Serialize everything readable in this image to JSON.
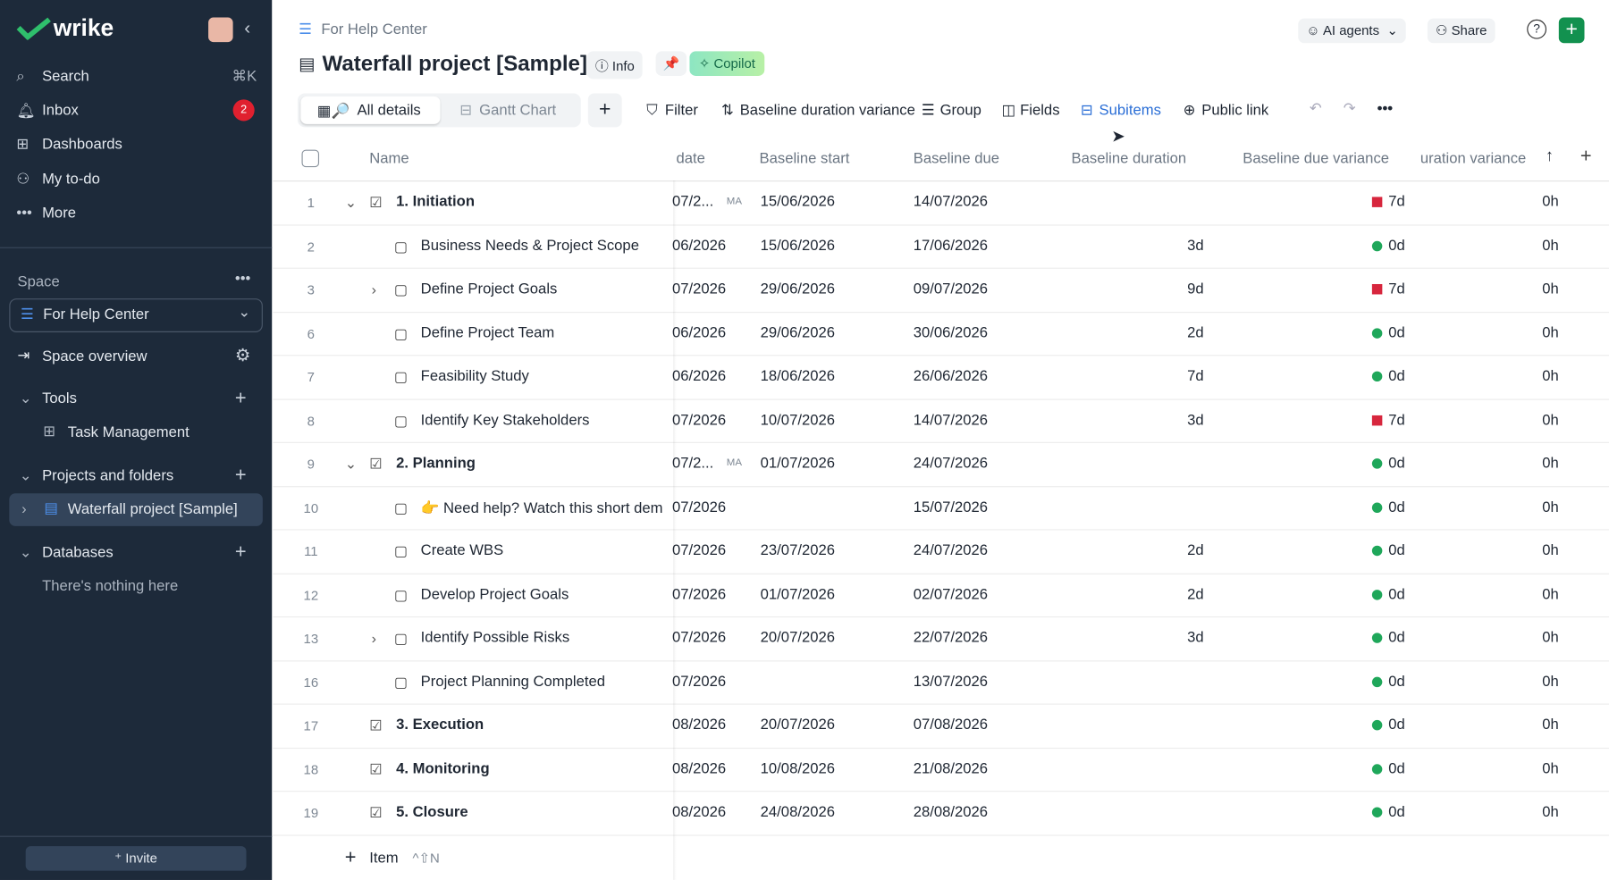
{
  "sidebar": {
    "logo": "wrike",
    "nav": [
      {
        "label": "Search",
        "shortcut": "⌘K"
      },
      {
        "label": "Inbox",
        "badge": "2"
      },
      {
        "label": "Dashboards"
      },
      {
        "label": "My to-do"
      },
      {
        "label": "More"
      }
    ],
    "space_label": "Space",
    "space": "For Help Center",
    "space_overview": "Space overview",
    "tools": "Tools",
    "tool_item": "Task Management",
    "projects": "Projects and folders",
    "project_item": "Waterfall project [Sample]",
    "databases": "Databases",
    "databases_empty": "There's nothing here",
    "invite": "Invite"
  },
  "header": {
    "breadcrumb": "For Help Center",
    "title": "Waterfall project [Sample]",
    "info": "Info",
    "copilot": "Copilot",
    "ai_agents": "AI agents",
    "share": "Share"
  },
  "toolbar": {
    "tabs": [
      "All details",
      "Gantt Chart"
    ],
    "actions": [
      "Filter",
      "Baseline duration variance",
      "Group",
      "Fields",
      "Subitems",
      "Public link"
    ]
  },
  "table": {
    "columns": [
      "Name",
      "date",
      "Baseline start",
      "Baseline due",
      "Baseline duration",
      "Baseline due variance",
      "uration variance"
    ],
    "status_colors": {
      "late": "#d7263d",
      "ok": "#1fa75a"
    },
    "rows": [
      {
        "num": "1",
        "name": "1. Initiation",
        "group": true,
        "expander": "open",
        "date": "07/2...",
        "tag": "MA",
        "start": "15/06/2026",
        "due": "14/07/2026",
        "status": "late",
        "variance": "7d",
        "dvar": "0h"
      },
      {
        "num": "2",
        "name": "Business Needs & Project Scope",
        "date": "06/2026",
        "start": "15/06/2026",
        "due": "17/06/2026",
        "duration": "3d",
        "status": "ok",
        "variance": "0d",
        "dvar": "0h"
      },
      {
        "num": "3",
        "name": "Define Project Goals",
        "expander": "closed",
        "date": "07/2026",
        "start": "29/06/2026",
        "due": "09/07/2026",
        "duration": "9d",
        "status": "late",
        "variance": "7d",
        "dvar": "0h"
      },
      {
        "num": "6",
        "name": "Define Project Team",
        "date": "06/2026",
        "start": "29/06/2026",
        "due": "30/06/2026",
        "duration": "2d",
        "status": "ok",
        "variance": "0d",
        "dvar": "0h"
      },
      {
        "num": "7",
        "name": "Feasibility Study",
        "date": "06/2026",
        "start": "18/06/2026",
        "due": "26/06/2026",
        "duration": "7d",
        "status": "ok",
        "variance": "0d",
        "dvar": "0h"
      },
      {
        "num": "8",
        "name": "Identify Key Stakeholders",
        "date": "07/2026",
        "start": "10/07/2026",
        "due": "14/07/2026",
        "duration": "3d",
        "status": "late",
        "variance": "7d",
        "dvar": "0h"
      },
      {
        "num": "9",
        "name": "2. Planning",
        "group": true,
        "expander": "open",
        "date": "07/2...",
        "tag": "MA",
        "start": "01/07/2026",
        "due": "24/07/2026",
        "status": "ok",
        "variance": "0d",
        "dvar": "0h"
      },
      {
        "num": "10",
        "name": "👉 Need help? Watch this short dem",
        "date": "07/2026",
        "due": "15/07/2026",
        "status": "ok",
        "variance": "0d",
        "dvar": "0h"
      },
      {
        "num": "11",
        "name": "Create WBS",
        "date": "07/2026",
        "start": "23/07/2026",
        "due": "24/07/2026",
        "duration": "2d",
        "status": "ok",
        "variance": "0d",
        "dvar": "0h"
      },
      {
        "num": "12",
        "name": "Develop Project Goals",
        "date": "07/2026",
        "start": "01/07/2026",
        "due": "02/07/2026",
        "duration": "2d",
        "status": "ok",
        "variance": "0d",
        "dvar": "0h"
      },
      {
        "num": "13",
        "name": "Identify Possible Risks",
        "expander": "closed",
        "date": "07/2026",
        "start": "20/07/2026",
        "due": "22/07/2026",
        "duration": "3d",
        "status": "ok",
        "variance": "0d",
        "dvar": "0h"
      },
      {
        "num": "16",
        "name": "Project Planning Completed",
        "date": "07/2026",
        "due": "13/07/2026",
        "status": "ok",
        "variance": "0d",
        "dvar": "0h"
      },
      {
        "num": "17",
        "name": "3. Execution",
        "group": true,
        "date": "08/2026",
        "start": "20/07/2026",
        "due": "07/08/2026",
        "status": "ok",
        "variance": "0d",
        "dvar": "0h"
      },
      {
        "num": "18",
        "name": "4. Monitoring",
        "group": true,
        "date": "08/2026",
        "start": "10/08/2026",
        "due": "21/08/2026",
        "status": "ok",
        "variance": "0d",
        "dvar": "0h"
      },
      {
        "num": "19",
        "name": "5. Closure",
        "group": true,
        "date": "08/2026",
        "start": "24/08/2026",
        "due": "28/08/2026",
        "status": "ok",
        "variance": "0d",
        "dvar": "0h"
      }
    ],
    "add_item": "Item",
    "add_shortcut": "^⇧N"
  }
}
